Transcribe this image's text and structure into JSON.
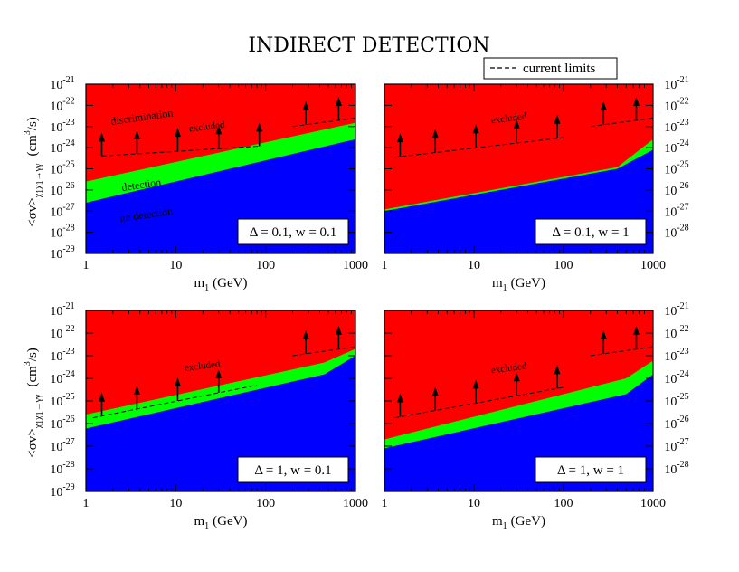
{
  "title": "INDIRECT DETECTION",
  "legend": {
    "label": "current limits"
  },
  "y_label": {
    "main": "<σv>",
    "sub": "χ",
    "sub2": "1",
    "sub3": "χ",
    "sub4": "1",
    "arrow": "→γγ",
    "unit_open": "(cm",
    "unit_exp": "3",
    "unit_close": "/s)"
  },
  "x_label": {
    "main": "m",
    "sub": "1",
    "unit": "(GeV)"
  },
  "x_ticks": [
    "1",
    "10",
    "100",
    "1000"
  ],
  "y_ticks_base": "10",
  "y_ticks_exp_top": [
    "-21",
    "-22",
    "-23",
    "-24",
    "-25",
    "-26",
    "-27",
    "-28",
    "-29"
  ],
  "y_ticks_exp_bottom": [
    "-21",
    "-22",
    "-23",
    "-24",
    "-25",
    "-26",
    "-27",
    "-28",
    "-29"
  ],
  "y_ticks_exp_right": [
    "-21",
    "-22",
    "-23",
    "-24",
    "-25",
    "-26",
    "-27",
    "-28"
  ],
  "region_labels": {
    "discrimination": "discrimination",
    "detection": "detection",
    "no_detection": "no detection",
    "excluded": "excluded"
  },
  "colors": {
    "discrimination": "#ff0000",
    "detection": "#00ff00",
    "no_detection": "#0000ff"
  },
  "chart_data": [
    {
      "type": "area",
      "panel": "top-left",
      "params": {
        "delta": "0.1",
        "w": "0.1"
      },
      "param_text": "Δ = 0.1,  w = 0.1",
      "xlim": [
        1,
        1000
      ],
      "x_scale": "log",
      "ylim": [
        1e-29,
        1e-21
      ],
      "y_scale": "log",
      "detection_band_lower": [
        [
          1,
          2.5e-27
        ],
        [
          1000,
          2.5e-24
        ]
      ],
      "detection_band_upper": [
        [
          1,
          2.5e-26
        ],
        [
          1000,
          1.5e-23
        ]
      ],
      "limit_segments": [
        [
          [
            1.5,
            4e-25
          ],
          [
            90,
            1.2e-24
          ]
        ],
        [
          [
            200,
            1e-23
          ],
          [
            1000,
            2.5e-23
          ]
        ]
      ],
      "arrows_x": [
        1.5,
        3.7,
        10.5,
        30,
        85,
        280,
        650
      ],
      "region_text": [
        "discrimination",
        "detection",
        "no detection",
        "excluded"
      ]
    },
    {
      "type": "area",
      "panel": "top-right",
      "params": {
        "delta": "0.1",
        "w": "1"
      },
      "param_text": "Δ = 0.1,  w = 1",
      "xlim": [
        1,
        1000
      ],
      "x_scale": "log",
      "ylim": [
        1e-29,
        1e-21
      ],
      "y_scale": "log",
      "detection_band_lower": [
        [
          1,
          1e-27
        ],
        [
          400,
          1e-25
        ],
        [
          1000,
          8e-25
        ]
      ],
      "detection_band_upper": [
        [
          1,
          1.2e-27
        ],
        [
          400,
          1.2e-25
        ],
        [
          1000,
          2.5e-24
        ]
      ],
      "limit_segments": [
        [
          [
            1.3,
            3.5e-25
          ],
          [
            100,
            3e-24
          ]
        ],
        [
          [
            200,
            1e-23
          ],
          [
            1000,
            2.5e-23
          ]
        ]
      ],
      "arrows_x": [
        1.5,
        3.7,
        10.5,
        30,
        85,
        280,
        650
      ],
      "region_text": [
        "excluded"
      ]
    },
    {
      "type": "area",
      "panel": "bottom-left",
      "params": {
        "delta": "1",
        "w": "0.1"
      },
      "param_text": "Δ = 1,  w = 0.1",
      "xlim": [
        1,
        1000
      ],
      "x_scale": "log",
      "ylim": [
        1e-29,
        1e-21
      ],
      "y_scale": "log",
      "detection_band_lower": [
        [
          1,
          6e-27
        ],
        [
          450,
          1.5e-24
        ],
        [
          1000,
          1e-23
        ]
      ],
      "detection_band_upper": [
        [
          1,
          2.5e-26
        ],
        [
          450,
          5e-24
        ],
        [
          1000,
          2e-23
        ]
      ],
      "limit_segments": [
        [
          [
            1.2,
            1.8e-26
          ],
          [
            80,
            5e-25
          ]
        ],
        [
          [
            200,
            1e-23
          ],
          [
            1000,
            2.5e-23
          ]
        ]
      ],
      "arrows_x": [
        1.5,
        3.7,
        10.5,
        30,
        85,
        280,
        650
      ],
      "region_text": [
        "excluded"
      ]
    },
    {
      "type": "area",
      "panel": "bottom-right",
      "params": {
        "delta": "1",
        "w": "1"
      },
      "param_text": "Δ = 1,  w = 1",
      "xlim": [
        1,
        1000
      ],
      "x_scale": "log",
      "ylim": [
        1e-29,
        1e-21
      ],
      "y_scale": "log",
      "detection_band_lower": [
        [
          1,
          8e-28
        ],
        [
          500,
          2e-25
        ],
        [
          1000,
          1.5e-24
        ]
      ],
      "detection_band_upper": [
        [
          1,
          2e-27
        ],
        [
          500,
          1e-24
        ],
        [
          1000,
          6e-24
        ]
      ],
      "limit_segments": [
        [
          [
            1.3,
            1.8e-26
          ],
          [
            100,
            4e-25
          ]
        ],
        [
          [
            200,
            1e-23
          ],
          [
            1000,
            2.5e-23
          ]
        ]
      ],
      "arrows_x": [
        1.5,
        3.7,
        10.5,
        30,
        85,
        280,
        650
      ],
      "region_text": [
        "excluded"
      ]
    }
  ]
}
